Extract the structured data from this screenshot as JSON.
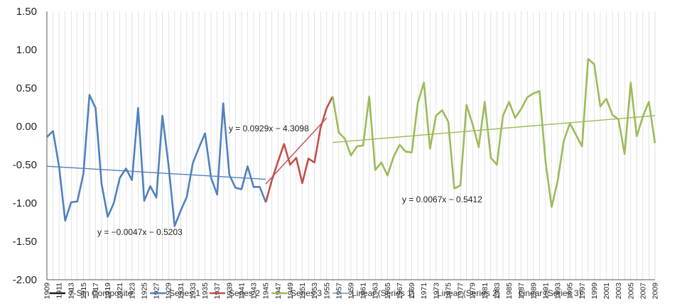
{
  "chart_data": {
    "type": "line",
    "xlim": [
      1909,
      2009
    ],
    "ylim": [
      -2.0,
      1.5
    ],
    "yticks": [
      "1.50",
      "1.00",
      "0.50",
      "0.00",
      "-0.50",
      "-1.00",
      "-1.50",
      "-2.00"
    ],
    "ytick_values": [
      1.5,
      1.0,
      0.5,
      0.0,
      -0.5,
      -1.0,
      -1.5,
      -2.0
    ],
    "xticks": [
      1909,
      1911,
      1913,
      1915,
      1917,
      1919,
      1921,
      1923,
      1925,
      1927,
      1929,
      1931,
      1933,
      1935,
      1937,
      1939,
      1941,
      1943,
      1945,
      1947,
      1949,
      1951,
      1953,
      1955,
      1957,
      1959,
      1961,
      1963,
      1965,
      1967,
      1969,
      1971,
      1973,
      1975,
      1977,
      1979,
      1981,
      1983,
      1985,
      1987,
      1989,
      1991,
      1993,
      1995,
      1997,
      1999,
      2001,
      2003,
      2005,
      2007,
      2009
    ],
    "grid": "vertical",
    "legend_position": "bottom",
    "colors": {
      "composite": "#1a1a1a",
      "series1": "#4f81bd",
      "series2": "#c0504d",
      "series3": "#9bbb59",
      "linear1": "#4f81bd",
      "linear2": "#c0504d",
      "linear3": "#9bbb59",
      "grid": "#d0d0d0"
    },
    "legend": [
      {
        "key": "composite",
        "label": "7-Stn Composite"
      },
      {
        "key": "series1",
        "label": "Series 1"
      },
      {
        "key": "series2",
        "label": "Series 2"
      },
      {
        "key": "series3",
        "label": "Series 3"
      },
      {
        "key": "linear1",
        "label": "Linear (Series 1)"
      },
      {
        "key": "linear2",
        "label": "Linear (Series 2)"
      },
      {
        "key": "linear3",
        "label": "Linear (Series 3)"
      }
    ],
    "series": [
      {
        "key": "series1",
        "name": "Series 1",
        "x": [
          1909,
          1910,
          1911,
          1912,
          1913,
          1914,
          1915,
          1916,
          1917,
          1918,
          1919,
          1920,
          1921,
          1922,
          1923,
          1924,
          1925,
          1926,
          1927,
          1928,
          1929,
          1930,
          1931,
          1932,
          1933,
          1934,
          1935,
          1936,
          1937,
          1938,
          1939,
          1940,
          1941,
          1942,
          1943,
          1944,
          1945
        ],
        "y": [
          -0.14,
          -0.06,
          -0.52,
          -1.23,
          -0.99,
          -0.98,
          -0.62,
          0.41,
          0.24,
          -0.75,
          -1.18,
          -1.0,
          -0.67,
          -0.55,
          -0.7,
          0.24,
          -0.97,
          -0.78,
          -0.93,
          0.14,
          -0.5,
          -1.3,
          -1.1,
          -0.92,
          -0.48,
          -0.28,
          -0.09,
          -0.67,
          -0.89,
          0.3,
          -0.63,
          -0.8,
          -0.82,
          -0.52,
          -0.79,
          -0.79,
          -0.99
        ]
      },
      {
        "key": "series2",
        "name": "Series 2",
        "x": [
          1945,
          1946,
          1947,
          1948,
          1949,
          1950,
          1951,
          1952,
          1953,
          1954,
          1955,
          1956
        ],
        "y": [
          -0.99,
          -0.7,
          -0.46,
          -0.23,
          -0.5,
          -0.41,
          -0.74,
          -0.42,
          -0.47,
          -0.02,
          0.24,
          0.39
        ]
      },
      {
        "key": "series3",
        "name": "Series 3",
        "x": [
          1956,
          1957,
          1958,
          1959,
          1960,
          1961,
          1962,
          1963,
          1964,
          1965,
          1966,
          1967,
          1968,
          1969,
          1970,
          1971,
          1972,
          1973,
          1974,
          1975,
          1976,
          1977,
          1978,
          1979,
          1980,
          1981,
          1982,
          1983,
          1984,
          1985,
          1986,
          1987,
          1988,
          1989,
          1990,
          1991,
          1992,
          1993,
          1994,
          1995,
          1996,
          1997,
          1998,
          1999,
          2000,
          2001,
          2002,
          2003,
          2004,
          2005,
          2006,
          2007,
          2008,
          2009
        ],
        "y": [
          0.39,
          -0.08,
          -0.16,
          -0.38,
          -0.26,
          -0.25,
          0.39,
          -0.57,
          -0.47,
          -0.64,
          -0.4,
          -0.24,
          -0.33,
          -0.34,
          0.31,
          0.57,
          -0.29,
          0.14,
          0.21,
          0.06,
          -0.81,
          -0.77,
          0.28,
          0.03,
          -0.27,
          0.32,
          -0.41,
          -0.5,
          0.14,
          0.32,
          0.11,
          0.23,
          0.38,
          0.43,
          0.46,
          -0.46,
          -1.05,
          -0.71,
          -0.19,
          0.04,
          -0.11,
          -0.26,
          0.88,
          0.81,
          0.26,
          0.36,
          0.15,
          0.09,
          -0.36,
          0.57,
          -0.13,
          0.13,
          0.32,
          -0.22
        ]
      }
    ],
    "trendlines": [
      {
        "key": "linear1",
        "name": "Linear (Series 1)",
        "x": [
          1909,
          1945
        ],
        "y": [
          -0.52,
          -0.69
        ],
        "equation": "y = −0.0047x − 0.5203"
      },
      {
        "key": "linear2",
        "name": "Linear (Series 2)",
        "x": [
          1945,
          1955
        ],
        "y": [
          -0.75,
          0.11
        ],
        "equation": "y = 0.0929x − 4.3098"
      },
      {
        "key": "linear3",
        "name": "Linear (Series 3)",
        "x": [
          1956,
          2009
        ],
        "y": [
          -0.21,
          0.14
        ],
        "equation": "y = 0.0067x − 0.5412"
      }
    ]
  }
}
